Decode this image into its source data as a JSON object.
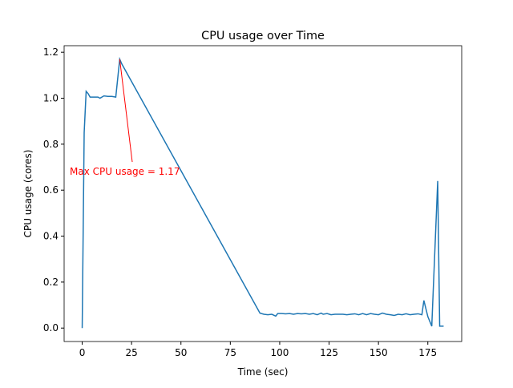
{
  "chart_data": {
    "type": "line",
    "title": "CPU usage over Time",
    "x_label": "Time (sec)",
    "y_label": "CPU usage (cores)",
    "annotation": "Max CPU usage = 1.17",
    "annotation_color": "#ff0000",
    "series": [
      {
        "color": "#1f77b4",
        "x": [
          0,
          1,
          2,
          3,
          4,
          6,
          8,
          9,
          11,
          13,
          15,
          17,
          19,
          20,
          90,
          92,
          94,
          96,
          98,
          99,
          101,
          103,
          105,
          107,
          109,
          111,
          113,
          115,
          117,
          119,
          121,
          122,
          124,
          126,
          128,
          130,
          132,
          134,
          136,
          138,
          140,
          142,
          144,
          146,
          148,
          150,
          152,
          154,
          156,
          158,
          160,
          162,
          164,
          166,
          168,
          170,
          172,
          173,
          175,
          177,
          180,
          181,
          183
        ],
        "values": [
          0,
          0.85,
          1.03,
          1.02,
          1.005,
          1.005,
          1.005,
          1.0,
          1.01,
          1.008,
          1.008,
          1.005,
          1.17,
          1.15,
          0.065,
          0.06,
          0.058,
          0.06,
          0.052,
          0.063,
          0.063,
          0.062,
          0.063,
          0.06,
          0.063,
          0.062,
          0.063,
          0.06,
          0.063,
          0.058,
          0.065,
          0.06,
          0.063,
          0.058,
          0.06,
          0.06,
          0.06,
          0.058,
          0.06,
          0.062,
          0.058,
          0.063,
          0.058,
          0.063,
          0.06,
          0.058,
          0.065,
          0.06,
          0.058,
          0.055,
          0.06,
          0.058,
          0.062,
          0.058,
          0.06,
          0.062,
          0.058,
          0.12,
          0.05,
          0.008,
          0.64,
          0.008,
          0.008
        ]
      }
    ],
    "xlim": [
      -9.15,
      192.15
    ],
    "xticks": [
      0,
      25,
      50,
      75,
      100,
      125,
      150,
      175
    ],
    "ylim": [
      -0.0585,
      1.2285
    ],
    "yticks": [
      {
        "value": 0,
        "label": "0.0"
      },
      {
        "value": 0.2,
        "label": "0.2"
      },
      {
        "value": 0.4,
        "label": "0.4"
      },
      {
        "value": 0.6,
        "label": "0.6"
      },
      {
        "value": 0.8,
        "label": "0.8"
      },
      {
        "value": 1.0,
        "label": "1.0"
      },
      {
        "value": 1.2,
        "label": "1.2"
      }
    ],
    "grid": false
  }
}
